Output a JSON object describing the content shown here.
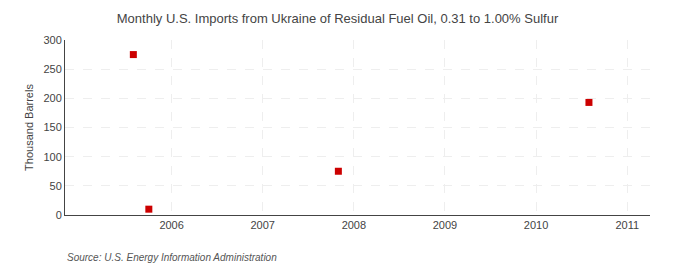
{
  "chart_data": {
    "type": "scatter",
    "title": "Monthly U.S. Imports from Ukraine of Residual Fuel Oil, 0.31 to 1.00% Sulfur",
    "y_label": "Thousand Barrels",
    "annotations": [
      "Source: U.S. Energy Information Administration"
    ],
    "x": [
      2005.58,
      2005.75,
      2007.83,
      2010.58
    ],
    "values": [
      275,
      10,
      75,
      193
    ],
    "color": "#cc0000",
    "marker": "square",
    "xlim": [
      2004.83,
      2011.25
    ],
    "ylim": [
      0,
      300
    ],
    "xticks": [
      2006,
      2007,
      2008,
      2009,
      2010,
      2011
    ],
    "yticks": [
      0,
      50,
      100,
      150,
      200,
      250,
      300
    ],
    "grid": true
  }
}
